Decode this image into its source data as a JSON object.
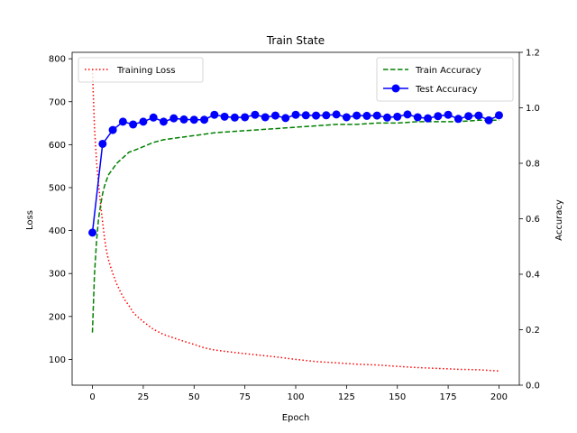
{
  "chart_data": {
    "type": "line",
    "title": "Train State",
    "xlabel": "Epoch",
    "ylabel_left": "Loss",
    "ylabel_right": "Accuracy",
    "xlim": [
      -10,
      210
    ],
    "ylim_left": [
      40,
      815
    ],
    "ylim_right": [
      0.0,
      1.2
    ],
    "xticks": [
      0,
      25,
      50,
      75,
      100,
      125,
      150,
      175,
      200
    ],
    "yticks_left": [
      100,
      200,
      300,
      400,
      500,
      600,
      700,
      800
    ],
    "yticks_right": [
      0.0,
      0.2,
      0.4,
      0.6,
      0.8,
      1.0,
      1.2
    ],
    "legend_left": {
      "placement": "upper-left",
      "entries": [
        "Training Loss"
      ]
    },
    "legend_right": {
      "placement": "upper-right",
      "entries": [
        "Train Accuracy",
        "Test Accuracy"
      ]
    },
    "series": [
      {
        "name": "Training Loss",
        "axis": "left",
        "color": "#ff0000",
        "style": "dotted",
        "x": [
          0,
          1,
          2,
          3,
          4,
          5,
          6,
          7,
          8,
          9,
          10,
          12,
          14,
          16,
          18,
          20,
          22,
          25,
          30,
          35,
          40,
          45,
          50,
          55,
          60,
          70,
          80,
          90,
          100,
          110,
          120,
          130,
          140,
          150,
          160,
          170,
          180,
          190,
          200
        ],
        "y": [
          775,
          640,
          560,
          510,
          460,
          420,
          380,
          350,
          330,
          315,
          300,
          275,
          255,
          238,
          225,
          210,
          200,
          188,
          170,
          158,
          150,
          142,
          135,
          127,
          122,
          116,
          111,
          106,
          100,
          95,
          92,
          89,
          87,
          84,
          81,
          79,
          77,
          76,
          73
        ]
      },
      {
        "name": "Train Accuracy",
        "axis": "right",
        "color": "#008000",
        "style": "dashed",
        "x": [
          0,
          1,
          2,
          3,
          4,
          5,
          6,
          7,
          8,
          10,
          12,
          15,
          18,
          20,
          25,
          30,
          35,
          40,
          50,
          60,
          70,
          80,
          90,
          100,
          110,
          120,
          130,
          140,
          150,
          160,
          170,
          180,
          190,
          200
        ],
        "y": [
          0.19,
          0.4,
          0.52,
          0.6,
          0.65,
          0.69,
          0.72,
          0.74,
          0.76,
          0.78,
          0.8,
          0.82,
          0.84,
          0.845,
          0.86,
          0.875,
          0.885,
          0.89,
          0.9,
          0.91,
          0.915,
          0.92,
          0.925,
          0.93,
          0.935,
          0.94,
          0.94,
          0.945,
          0.945,
          0.95,
          0.95,
          0.95,
          0.955,
          0.955
        ]
      },
      {
        "name": "Test Accuracy",
        "axis": "right",
        "color": "#0000ff",
        "style": "solid-markers",
        "x": [
          0,
          5,
          10,
          15,
          20,
          25,
          30,
          35,
          40,
          45,
          50,
          55,
          60,
          65,
          70,
          75,
          80,
          85,
          90,
          95,
          100,
          105,
          110,
          115,
          120,
          125,
          130,
          135,
          140,
          145,
          150,
          155,
          160,
          165,
          170,
          175,
          180,
          185,
          190,
          195,
          200
        ],
        "y": [
          0.55,
          0.87,
          0.92,
          0.95,
          0.94,
          0.95,
          0.965,
          0.95,
          0.962,
          0.958,
          0.957,
          0.957,
          0.975,
          0.968,
          0.965,
          0.966,
          0.975,
          0.966,
          0.972,
          0.963,
          0.975,
          0.973,
          0.972,
          0.973,
          0.976,
          0.966,
          0.972,
          0.971,
          0.972,
          0.965,
          0.968,
          0.976,
          0.966,
          0.962,
          0.97,
          0.975,
          0.96,
          0.97,
          0.972,
          0.955,
          0.973
        ]
      }
    ]
  }
}
